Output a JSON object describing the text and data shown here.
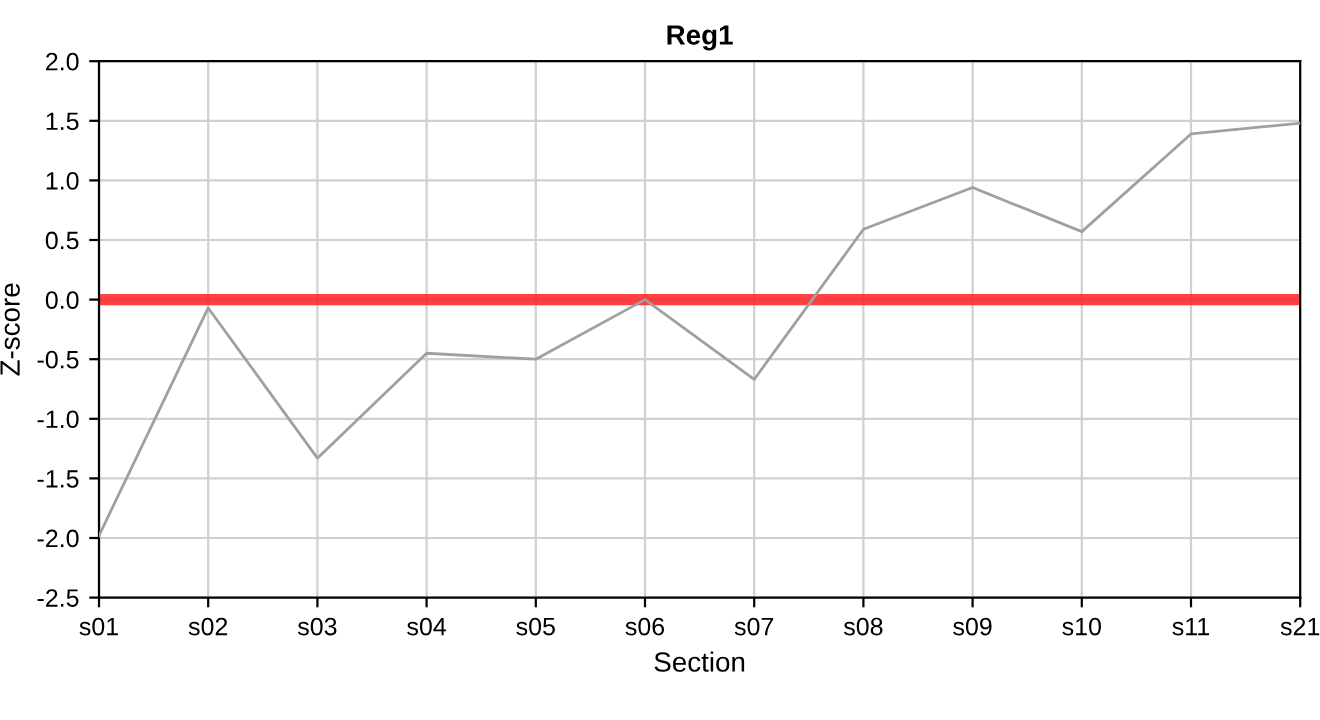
{
  "chart_data": {
    "type": "line",
    "title": "Reg1",
    "xlabel": "Section",
    "ylabel": "Z-score",
    "categories": [
      "s01",
      "s02",
      "s03",
      "s04",
      "s05",
      "s06",
      "s07",
      "s08",
      "s09",
      "s10",
      "s11",
      "s21"
    ],
    "series": [
      {
        "color": "#a0a0a0",
        "values": [
          -1.98,
          -0.07,
          -1.33,
          -0.45,
          -0.5,
          0.0,
          -0.67,
          0.59,
          0.94,
          0.57,
          1.39,
          1.48
        ]
      }
    ],
    "ylim": [
      -2.5,
      2.0
    ],
    "yticks": [
      {
        "value": -2.5,
        "label": "-2.5"
      },
      {
        "value": -2.0,
        "label": "-2.0"
      },
      {
        "value": -1.5,
        "label": "-1.5"
      },
      {
        "value": -1.0,
        "label": "-1.0"
      },
      {
        "value": -0.5,
        "label": "-0.5"
      },
      {
        "value": 0.0,
        "label": "0.0"
      },
      {
        "value": 0.5,
        "label": "0.5"
      },
      {
        "value": 1.0,
        "label": "1.0"
      },
      {
        "value": 1.5,
        "label": "1.5"
      },
      {
        "value": 2.0,
        "label": "2.0"
      }
    ],
    "ref_lines": [
      {
        "axis": "y",
        "value": 0.0,
        "label": null,
        "color": "#ff2020"
      }
    ],
    "grid": true,
    "legend": false,
    "marker": "none",
    "line_style": "solid"
  }
}
